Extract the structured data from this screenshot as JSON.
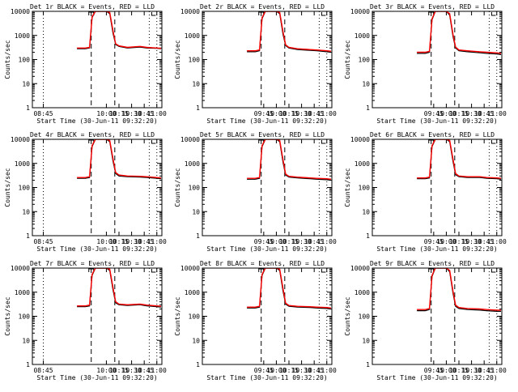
{
  "figure": {
    "ylabel": "Counts/sec",
    "xlabel": "Start Time (30-Jun-11 09:32:20)",
    "legend_text": "BLACK = Events, RED = LLD",
    "colors": {
      "events": "#000000",
      "lld": "#ff0000",
      "frame": "#000000",
      "background": "#ffffff"
    }
  },
  "chart_data": [
    {
      "type": "line",
      "title": "Det 1r  BLACK = Events, RED = LLD",
      "detector": "1r",
      "xlabel": "Start Time (30-Jun-11 09:32:20)",
      "ylabel": "Counts/sec",
      "yscale": "log",
      "xlim": [
        "08:32",
        "11:06"
      ],
      "ylim": [
        1,
        10000
      ],
      "x_ticks": [
        "08:45",
        "10:00",
        "10:15",
        "10:30",
        "10:45",
        "11:00"
      ],
      "y_ticks": [
        "1",
        "10",
        "100",
        "1000",
        "10000"
      ],
      "dashed_markers": [
        "09:42",
        "10:10"
      ],
      "dotted_markers": [
        "08:45",
        "10:51",
        "11:00"
      ],
      "x": [
        "09:25",
        "09:35",
        "09:40",
        "09:43",
        "09:47",
        "10:00",
        "10:04",
        "10:08",
        "10:11",
        "10:15",
        "10:25",
        "10:40",
        "10:48",
        "11:00",
        "11:05"
      ],
      "series": [
        {
          "name": "Events",
          "values": [
            280,
            280,
            300,
            5500,
            10000,
            10000,
            8000,
            1200,
            420,
            350,
            300,
            330,
            300,
            290,
            280
          ]
        },
        {
          "name": "LLD",
          "values": [
            300,
            300,
            320,
            6000,
            10000,
            10000,
            9000,
            1500,
            450,
            370,
            320,
            350,
            320,
            300,
            290
          ]
        }
      ]
    },
    {
      "type": "line",
      "title": "Det 2r  BLACK = Events, RED = LLD",
      "detector": "2r",
      "xlabel": "Start Time (30-Jun-11 09:32:20)",
      "ylabel": "Counts/sec",
      "yscale": "log",
      "xlim": [
        "08:32",
        "11:06"
      ],
      "ylim": [
        1,
        10000
      ],
      "x_ticks": [
        "09:45",
        "10:00",
        "10:15",
        "10:30",
        "10:45",
        "11:00"
      ],
      "y_ticks": [
        "1",
        "10",
        "100",
        "1000",
        "10000"
      ],
      "dashed_markers": [
        "09:42",
        "10:10"
      ],
      "dotted_markers": [
        "10:51",
        "11:00"
      ],
      "x": [
        "09:25",
        "09:35",
        "09:40",
        "09:43",
        "09:47",
        "10:00",
        "10:04",
        "10:08",
        "10:11",
        "10:15",
        "10:25",
        "10:40",
        "10:48",
        "11:00",
        "11:05"
      ],
      "series": [
        {
          "name": "Events",
          "values": [
            210,
            210,
            230,
            5000,
            10000,
            10000,
            8000,
            1100,
            380,
            300,
            260,
            240,
            230,
            210,
            200
          ]
        },
        {
          "name": "LLD",
          "values": [
            230,
            230,
            250,
            5500,
            10000,
            10000,
            9000,
            1400,
            410,
            320,
            280,
            260,
            250,
            230,
            220
          ]
        }
      ]
    },
    {
      "type": "line",
      "title": "Det 3r  BLACK = Events, RED = LLD",
      "detector": "3r",
      "xlabel": "Start Time (30-Jun-11 09:32:20)",
      "ylabel": "Counts/sec",
      "yscale": "log",
      "xlim": [
        "08:32",
        "11:06"
      ],
      "ylim": [
        1,
        10000
      ],
      "x_ticks": [
        "09:45",
        "10:00",
        "10:15",
        "10:30",
        "10:45",
        "11:00"
      ],
      "y_ticks": [
        "1",
        "10",
        "100",
        "1000",
        "10000"
      ],
      "dashed_markers": [
        "09:42",
        "10:10"
      ],
      "dotted_markers": [
        "10:51",
        "11:00"
      ],
      "x": [
        "09:25",
        "09:35",
        "09:40",
        "09:43",
        "09:47",
        "10:00",
        "10:04",
        "10:08",
        "10:11",
        "10:15",
        "10:25",
        "10:40",
        "10:48",
        "11:00",
        "11:05"
      ],
      "series": [
        {
          "name": "Events",
          "values": [
            180,
            180,
            200,
            4500,
            10000,
            10000,
            7000,
            900,
            300,
            230,
            210,
            190,
            180,
            170,
            160
          ]
        },
        {
          "name": "LLD",
          "values": [
            200,
            200,
            220,
            5000,
            10000,
            10000,
            8000,
            1100,
            330,
            250,
            230,
            210,
            200,
            190,
            180
          ]
        }
      ]
    },
    {
      "type": "line",
      "title": "Det 4r  BLACK = Events, RED = LLD",
      "detector": "4r",
      "xlabel": "Start Time (30-Jun-11 09:32:20)",
      "ylabel": "Counts/sec",
      "yscale": "log",
      "xlim": [
        "08:32",
        "11:06"
      ],
      "ylim": [
        1,
        10000
      ],
      "x_ticks": [
        "08:45",
        "10:00",
        "10:15",
        "10:30",
        "10:45",
        "11:00"
      ],
      "y_ticks": [
        "1",
        "10",
        "100",
        "1000",
        "10000"
      ],
      "dashed_markers": [
        "09:42",
        "10:10"
      ],
      "dotted_markers": [
        "08:45",
        "10:51",
        "11:00"
      ],
      "x": [
        "09:25",
        "09:35",
        "09:40",
        "09:43",
        "09:47",
        "10:00",
        "10:04",
        "10:08",
        "10:11",
        "10:15",
        "10:25",
        "10:40",
        "10:48",
        "11:00",
        "11:05"
      ],
      "series": [
        {
          "name": "Events",
          "values": [
            240,
            240,
            260,
            5000,
            10000,
            10000,
            8000,
            1200,
            380,
            300,
            280,
            270,
            260,
            240,
            230
          ]
        },
        {
          "name": "LLD",
          "values": [
            260,
            260,
            280,
            5500,
            10000,
            10000,
            9000,
            1500,
            420,
            330,
            300,
            290,
            280,
            260,
            250
          ]
        }
      ]
    },
    {
      "type": "line",
      "title": "Det 5r  BLACK = Events, RED = LLD",
      "detector": "5r",
      "xlabel": "Start Time (30-Jun-11 09:32:20)",
      "ylabel": "Counts/sec",
      "yscale": "log",
      "xlim": [
        "08:32",
        "11:06"
      ],
      "ylim": [
        1,
        10000
      ],
      "x_ticks": [
        "09:45",
        "10:00",
        "10:15",
        "10:30",
        "10:45",
        "11:00"
      ],
      "y_ticks": [
        "1",
        "10",
        "100",
        "1000",
        "10000"
      ],
      "dashed_markers": [
        "09:42",
        "10:10"
      ],
      "dotted_markers": [
        "10:51",
        "11:00"
      ],
      "x": [
        "09:25",
        "09:35",
        "09:40",
        "09:43",
        "09:47",
        "10:00",
        "10:04",
        "10:08",
        "10:11",
        "10:15",
        "10:25",
        "10:40",
        "10:48",
        "11:00",
        "11:05"
      ],
      "series": [
        {
          "name": "Events",
          "values": [
            220,
            220,
            240,
            5000,
            10000,
            10000,
            8000,
            1100,
            330,
            270,
            250,
            230,
            220,
            210,
            200
          ]
        },
        {
          "name": "LLD",
          "values": [
            240,
            240,
            260,
            5500,
            10000,
            10000,
            9000,
            1400,
            360,
            290,
            270,
            250,
            240,
            230,
            220
          ]
        }
      ]
    },
    {
      "type": "line",
      "title": "Det 6r  BLACK = Events, RED = LLD",
      "detector": "6r",
      "xlabel": "Start Time (30-Jun-11 09:32:20)",
      "ylabel": "Counts/sec",
      "yscale": "log",
      "xlim": [
        "08:32",
        "11:06"
      ],
      "ylim": [
        1,
        10000
      ],
      "x_ticks": [
        "09:45",
        "10:00",
        "10:15",
        "10:30",
        "10:45",
        "11:00"
      ],
      "y_ticks": [
        "1",
        "10",
        "100",
        "1000",
        "10000"
      ],
      "dashed_markers": [
        "09:42",
        "10:10"
      ],
      "dotted_markers": [
        "10:51",
        "11:00"
      ],
      "x": [
        "09:25",
        "09:35",
        "09:40",
        "09:43",
        "09:47",
        "10:00",
        "10:04",
        "10:08",
        "10:11",
        "10:15",
        "10:25",
        "10:40",
        "10:48",
        "11:00",
        "11:05"
      ],
      "series": [
        {
          "name": "Events",
          "values": [
            230,
            230,
            250,
            5000,
            10000,
            10000,
            8000,
            1200,
            340,
            280,
            260,
            260,
            240,
            230,
            220
          ]
        },
        {
          "name": "LLD",
          "values": [
            250,
            250,
            270,
            5500,
            10000,
            10000,
            9000,
            1500,
            380,
            300,
            280,
            280,
            260,
            250,
            240
          ]
        }
      ]
    },
    {
      "type": "line",
      "title": "Det 7r  BLACK = Events, RED = LLD",
      "detector": "7r",
      "xlabel": "Start Time (30-Jun-11 09:32:20)",
      "ylabel": "Counts/sec",
      "yscale": "log",
      "xlim": [
        "08:32",
        "11:06"
      ],
      "ylim": [
        1,
        10000
      ],
      "x_ticks": [
        "08:45",
        "10:00",
        "10:15",
        "10:30",
        "10:45",
        "11:00"
      ],
      "y_ticks": [
        "1",
        "10",
        "100",
        "1000",
        "10000"
      ],
      "dashed_markers": [
        "09:42",
        "10:10"
      ],
      "dotted_markers": [
        "08:45",
        "10:51",
        "11:00"
      ],
      "x": [
        "09:25",
        "09:35",
        "09:40",
        "09:43",
        "09:47",
        "10:00",
        "10:04",
        "10:08",
        "10:11",
        "10:15",
        "10:25",
        "10:40",
        "10:48",
        "11:00",
        "11:05"
      ],
      "series": [
        {
          "name": "Events",
          "values": [
            250,
            250,
            270,
            5000,
            10000,
            10000,
            8000,
            1200,
            360,
            300,
            280,
            300,
            270,
            250,
            240
          ]
        },
        {
          "name": "LLD",
          "values": [
            270,
            270,
            290,
            5500,
            10000,
            10000,
            9000,
            1500,
            400,
            320,
            300,
            320,
            290,
            270,
            260
          ]
        }
      ]
    },
    {
      "type": "line",
      "title": "Det 8r  BLACK = Events, RED = LLD",
      "detector": "8r",
      "xlabel": "Start Time (30-Jun-11 09:32:20)",
      "ylabel": "Counts/sec",
      "yscale": "log",
      "xlim": [
        "08:32",
        "11:06"
      ],
      "ylim": [
        1,
        10000
      ],
      "x_ticks": [
        "09:45",
        "10:00",
        "10:15",
        "10:30",
        "10:45",
        "11:00"
      ],
      "y_ticks": [
        "1",
        "10",
        "100",
        "1000",
        "10000"
      ],
      "dashed_markers": [
        "09:42",
        "10:10"
      ],
      "dotted_markers": [
        "10:51",
        "11:00"
      ],
      "x": [
        "09:25",
        "09:35",
        "09:40",
        "09:43",
        "09:47",
        "10:00",
        "10:04",
        "10:08",
        "10:11",
        "10:15",
        "10:25",
        "10:40",
        "10:48",
        "11:00",
        "11:05"
      ],
      "series": [
        {
          "name": "Events",
          "values": [
            220,
            220,
            240,
            5000,
            10000,
            10000,
            8000,
            1100,
            320,
            260,
            240,
            230,
            220,
            210,
            200
          ]
        },
        {
          "name": "LLD",
          "values": [
            240,
            240,
            260,
            5500,
            10000,
            10000,
            9000,
            1400,
            350,
            280,
            260,
            250,
            240,
            230,
            220
          ]
        }
      ]
    },
    {
      "type": "line",
      "title": "Det 9r  BLACK = Events, RED = LLD",
      "detector": "9r",
      "xlabel": "Start Time (30-Jun-11 09:32:20)",
      "ylabel": "Counts/sec",
      "yscale": "log",
      "xlim": [
        "08:32",
        "11:06"
      ],
      "ylim": [
        1,
        10000
      ],
      "x_ticks": [
        "09:45",
        "10:00",
        "10:15",
        "10:30",
        "10:45",
        "11:00"
      ],
      "y_ticks": [
        "1",
        "10",
        "100",
        "1000",
        "10000"
      ],
      "dashed_markers": [
        "09:42",
        "10:10"
      ],
      "dotted_markers": [
        "10:51",
        "11:00"
      ],
      "x": [
        "09:25",
        "09:35",
        "09:40",
        "09:43",
        "09:47",
        "10:00",
        "10:04",
        "10:08",
        "10:11",
        "10:15",
        "10:25",
        "10:40",
        "10:48",
        "11:00",
        "11:05"
      ],
      "series": [
        {
          "name": "Events",
          "values": [
            170,
            170,
            190,
            4500,
            10000,
            10000,
            7000,
            900,
            260,
            210,
            190,
            180,
            170,
            160,
            160
          ]
        },
        {
          "name": "LLD",
          "values": [
            190,
            190,
            210,
            5000,
            10000,
            10000,
            8000,
            1100,
            290,
            230,
            210,
            200,
            190,
            180,
            180
          ]
        }
      ]
    }
  ]
}
